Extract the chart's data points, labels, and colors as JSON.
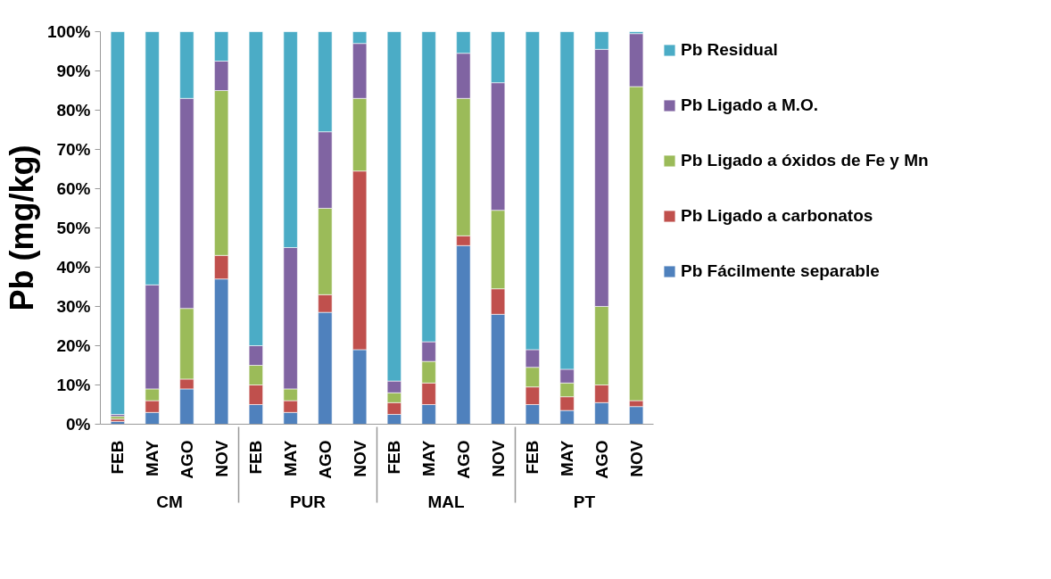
{
  "chart_data": {
    "type": "bar",
    "stacked": true,
    "ylabel": "Pb (mg/kg)",
    "categories": [
      "FEB",
      "MAY",
      "AGO",
      "NOV",
      "FEB",
      "MAY",
      "AGO",
      "NOV",
      "FEB",
      "MAY",
      "AGO",
      "NOV",
      "FEB",
      "MAY",
      "AGO",
      "NOV"
    ],
    "annotations": [
      "CM",
      "PUR",
      "MAL",
      "PT"
    ],
    "series": [
      {
        "name": "Pb Fácilmente separable",
        "color": "#4f81bd",
        "values": [
          0.7,
          3,
          9,
          37,
          5,
          3,
          28.5,
          19,
          2.5,
          5,
          45.5,
          28,
          5,
          3.5,
          5.5,
          4.5
        ]
      },
      {
        "name": "Pb Ligado a carbonatos",
        "color": "#c0504d",
        "values": [
          0.6,
          3,
          2.5,
          6,
          5,
          3,
          4.5,
          45.5,
          3,
          5.5,
          2.5,
          6.5,
          4.5,
          3.5,
          4.5,
          1.5
        ]
      },
      {
        "name": "Pb Ligado a óxidos de Fe y Mn",
        "color": "#9bbb59",
        "values": [
          0.7,
          3,
          18,
          42,
          5,
          3,
          22,
          18.5,
          2.5,
          5.5,
          35,
          20,
          5,
          3.5,
          20,
          80
        ]
      },
      {
        "name": "Pb Ligado a M.O.",
        "color": "#8064a2",
        "values": [
          0.5,
          26.5,
          53.5,
          7.5,
          5,
          36,
          19.5,
          14,
          3,
          5,
          11.5,
          32.5,
          4.5,
          3.5,
          65.5,
          13.5
        ]
      },
      {
        "name": "Pb Residual",
        "color": "#4bacc6",
        "values": [
          97.5,
          64.5,
          17,
          7.5,
          80,
          55,
          25.5,
          3,
          89,
          79,
          5.5,
          13,
          81,
          86,
          4.5,
          0.5
        ]
      }
    ],
    "ylim": [
      0,
      100
    ],
    "yticks": [
      {
        "value": 0,
        "label": "0%"
      },
      {
        "value": 10,
        "label": "10%"
      },
      {
        "value": 20,
        "label": "20%"
      },
      {
        "value": 30,
        "label": "30%"
      },
      {
        "value": 40,
        "label": "40%"
      },
      {
        "value": 50,
        "label": "50%"
      },
      {
        "value": 60,
        "label": "60%"
      },
      {
        "value": 70,
        "label": "70%"
      },
      {
        "value": 80,
        "label": "80%"
      },
      {
        "value": 90,
        "label": "90%"
      },
      {
        "value": 100,
        "label": "100%"
      }
    ],
    "grid": false,
    "legend": "right"
  }
}
